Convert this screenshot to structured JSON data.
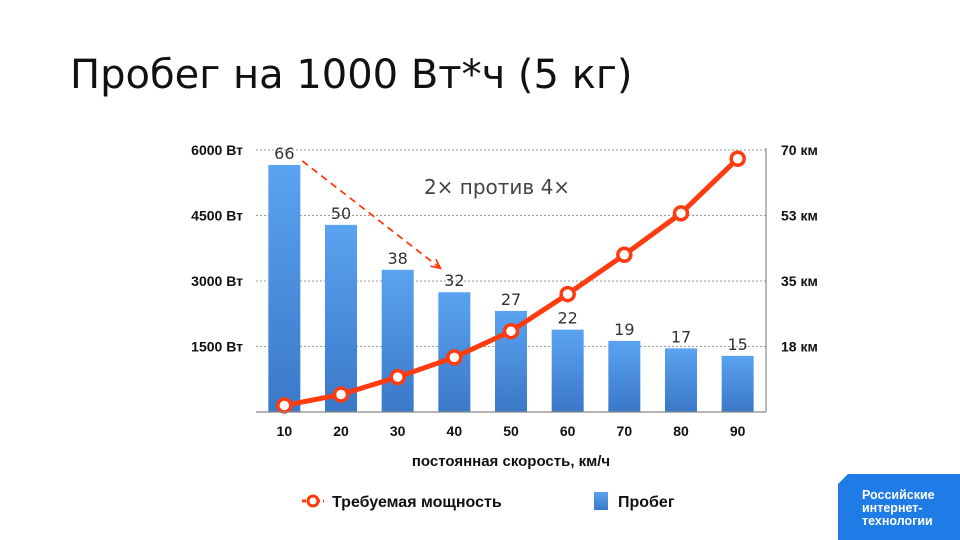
{
  "title": "Пробег на 1000 Вт*ч (5 кг)",
  "chart_data": {
    "type": "bar+line",
    "categories": [
      "10",
      "20",
      "30",
      "40",
      "50",
      "60",
      "70",
      "80",
      "90"
    ],
    "xlabel": "постоянная скорость, км/ч",
    "left_axis": {
      "ticks": [
        "1500 Вт",
        "3000 Вт",
        "4500 Вт",
        "6000 Вт"
      ],
      "tick_values": [
        1500,
        3000,
        4500,
        6000
      ],
      "range": [
        0,
        6000
      ]
    },
    "right_axis": {
      "ticks": [
        "18 км",
        "35 км",
        "53 км",
        "70 км"
      ],
      "tick_values": [
        17.5,
        35,
        52.5,
        70
      ],
      "range": [
        0,
        70
      ]
    },
    "grid": true,
    "series": [
      {
        "name": "Пробег",
        "kind": "bar",
        "axis": "right",
        "color": "#4a8fe0",
        "values": [
          66,
          50,
          38,
          32,
          27,
          22,
          19,
          17,
          15
        ],
        "labels": [
          "66",
          "50",
          "38",
          "32",
          "27",
          "22",
          "19",
          "17",
          "15"
        ]
      },
      {
        "name": "Требуемая мощность",
        "kind": "line",
        "axis": "left",
        "color": "#ff3b10",
        "values": [
          150,
          400,
          800,
          1250,
          1850,
          2700,
          3600,
          4550,
          5800
        ]
      }
    ],
    "annotation": {
      "text": "2× против 4×",
      "arrow_from_category": "10",
      "arrow_to_category": "40",
      "arrow_color": "#ff3b10"
    },
    "legend": {
      "placement": "bottom",
      "items": [
        "Требуемая мощность",
        "Пробег"
      ]
    }
  },
  "logo": {
    "lines": [
      "Российские",
      "интернет-",
      "технологии"
    ],
    "color": "#1f7be6"
  }
}
